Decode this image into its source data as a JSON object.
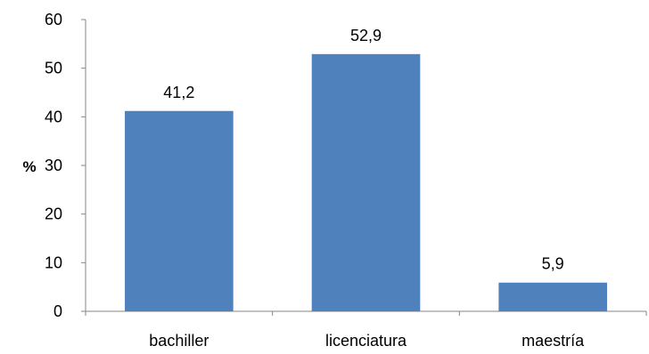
{
  "chart_data": {
    "type": "bar",
    "categories": [
      "bachiller",
      "licenciatura",
      "maestría"
    ],
    "values": [
      41.2,
      52.9,
      5.9
    ],
    "value_labels": [
      "41,2",
      "52,9",
      "5,9"
    ],
    "title": "",
    "xlabel": "",
    "ylabel": "%",
    "ylim": [
      0,
      60
    ],
    "yticks": [
      "0",
      "10",
      "20",
      "30",
      "40",
      "50",
      "60"
    ],
    "grid": false,
    "bar_color": "#4F81BD"
  }
}
